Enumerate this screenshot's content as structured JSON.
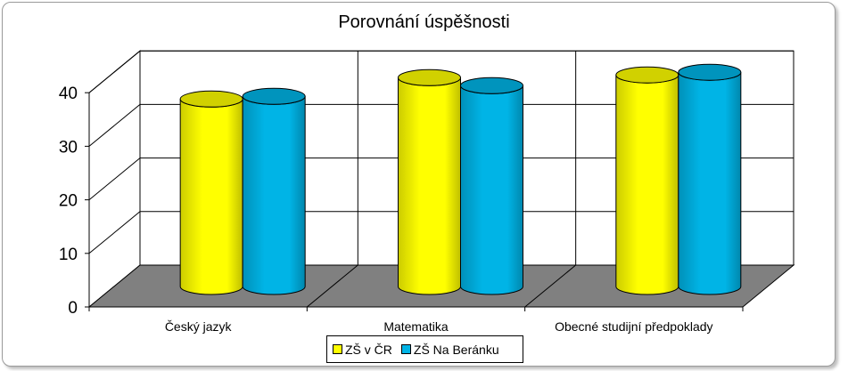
{
  "chart_data": {
    "type": "bar",
    "style": "3d-cylinder",
    "title": "Porovnání úspěšnosti",
    "xlabel": "",
    "ylabel": "",
    "ylim": [
      0,
      40
    ],
    "yticks": [
      0,
      10,
      20,
      30,
      40
    ],
    "grid": true,
    "legend_position": "bottom",
    "categories": [
      "Český jazyk",
      "Matematika",
      "Obecné studijní předpoklady"
    ],
    "series": [
      {
        "name": "ZŠ v ČR",
        "color": "#ffff00",
        "values": [
          35,
          39,
          39.5
        ]
      },
      {
        "name": "ZŠ Na Beránku",
        "color": "#00b4e6",
        "values": [
          35.5,
          37.5,
          40
        ]
      }
    ],
    "floor_color": "#808080"
  }
}
